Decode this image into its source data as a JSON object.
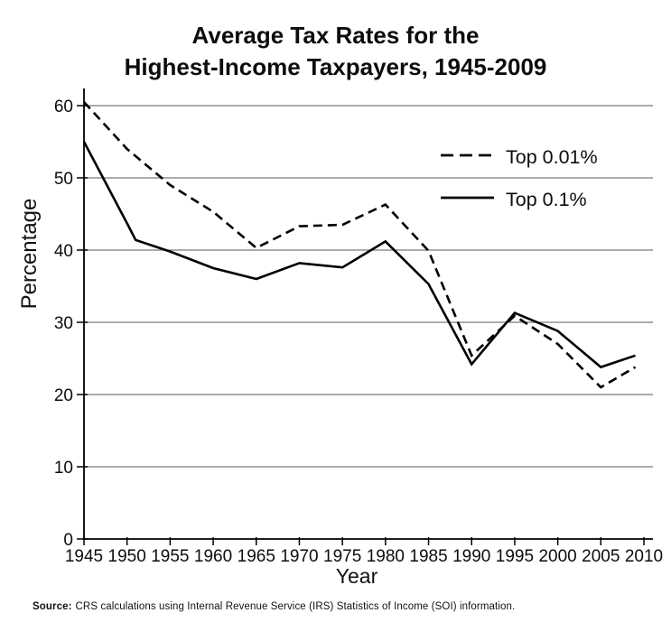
{
  "title": {
    "line1": "Average Tax Rates for the",
    "line2": "Highest-Income Taxpayers, 1945-2009"
  },
  "source": {
    "label": "Source:",
    "text": "CRS calculations using Internal Revenue Service (IRS) Statistics of Income (SOI) information."
  },
  "chart_data": {
    "type": "line",
    "title": "Average Tax Rates for the Highest-Income Taxpayers, 1945-2009",
    "xlabel": "Year",
    "ylabel": "Percentage",
    "xlim": [
      1945,
      2010
    ],
    "ylim": [
      0,
      60
    ],
    "x_ticks": [
      1945,
      1950,
      1955,
      1960,
      1965,
      1970,
      1975,
      1980,
      1985,
      1990,
      1995,
      2000,
      2005,
      2010
    ],
    "y_ticks": [
      0,
      10,
      20,
      30,
      40,
      50,
      60
    ],
    "grid": true,
    "legend_position": "upper-right-inside",
    "colors": {
      "line": "#000000",
      "grid": "#7a7a7a",
      "axis": "#000000",
      "background": "#ffffff"
    },
    "series": [
      {
        "name": "Top 0.01%",
        "style": "dashed",
        "points": [
          [
            1945,
            60.5
          ],
          [
            1950,
            54.0
          ],
          [
            1955,
            49.0
          ],
          [
            1960,
            45.3
          ],
          [
            1965,
            40.3
          ],
          [
            1970,
            43.3
          ],
          [
            1975,
            43.5
          ],
          [
            1980,
            46.3
          ],
          [
            1985,
            39.9
          ],
          [
            1990,
            25.4
          ],
          [
            1995,
            30.9
          ],
          [
            2000,
            27.0
          ],
          [
            2005,
            21.0
          ],
          [
            2009,
            23.8
          ]
        ]
      },
      {
        "name": "Top 0.1%",
        "style": "solid",
        "points": [
          [
            1945,
            55.0
          ],
          [
            1950,
            43.7
          ],
          [
            1951,
            41.4
          ],
          [
            1955,
            39.8
          ],
          [
            1960,
            37.5
          ],
          [
            1965,
            36.0
          ],
          [
            1970,
            38.2
          ],
          [
            1975,
            37.6
          ],
          [
            1980,
            41.2
          ],
          [
            1985,
            35.3
          ],
          [
            1990,
            24.2
          ],
          [
            1995,
            31.3
          ],
          [
            2000,
            28.8
          ],
          [
            2005,
            23.8
          ],
          [
            2009,
            25.4
          ]
        ]
      }
    ]
  }
}
